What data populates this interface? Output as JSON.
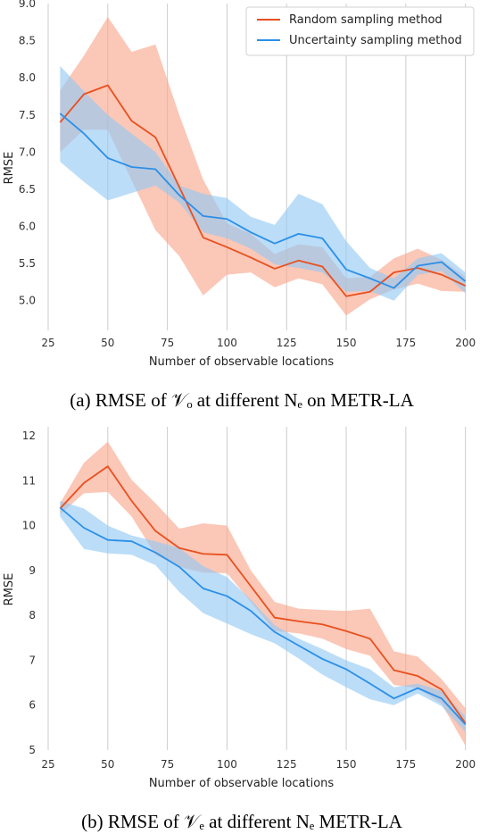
{
  "colors": {
    "random": "#e8501e",
    "random_band": "#f9a58a",
    "uncertainty": "#2b8fe8",
    "uncertainty_band": "#92c8f4",
    "grid": "#cccccc"
  },
  "chart_data": [
    {
      "type": "line",
      "caption": "(a) RMSE of 𝒱ₒ at different Nₑ on METR-LA",
      "xlabel": "Number of observable locations",
      "ylabel": "RMSE",
      "xlim": [
        25,
        202
      ],
      "ylim": [
        4.6,
        9.0
      ],
      "xticks": [
        25,
        50,
        75,
        100,
        125,
        150,
        175,
        200
      ],
      "yticks": [
        5.0,
        5.5,
        6.0,
        6.5,
        7.0,
        7.5,
        8.0,
        8.5,
        9.0
      ],
      "ytick_labels": [
        "5.0",
        "5.5",
        "6.0",
        "6.5",
        "7.0",
        "7.5",
        "8.0",
        "8.5",
        "9.0"
      ],
      "grid": "vertical",
      "legend": "top-right",
      "x": [
        30,
        40,
        50,
        60,
        70,
        80,
        90,
        100,
        110,
        120,
        130,
        140,
        150,
        160,
        170,
        180,
        190,
        200
      ],
      "series": [
        {
          "name": "Random sampling method",
          "key": "random",
          "values": [
            7.4,
            7.78,
            7.9,
            7.42,
            7.2,
            6.53,
            5.85,
            5.72,
            5.58,
            5.43,
            5.54,
            5.46,
            5.06,
            5.12,
            5.38,
            5.44,
            5.35,
            5.2
          ],
          "upper": [
            7.83,
            8.3,
            8.82,
            8.35,
            8.45,
            7.5,
            6.63,
            6.04,
            5.9,
            5.63,
            5.76,
            5.72,
            5.3,
            5.32,
            5.57,
            5.7,
            5.55,
            5.32
          ],
          "lower": [
            7.0,
            7.3,
            7.3,
            6.62,
            5.95,
            5.6,
            5.07,
            5.35,
            5.38,
            5.18,
            5.3,
            5.22,
            4.8,
            5.02,
            5.15,
            5.23,
            5.13,
            5.12
          ]
        },
        {
          "name": "Uncertainty sampling method",
          "key": "uncertainty",
          "values": [
            7.52,
            7.25,
            6.92,
            6.8,
            6.77,
            6.42,
            6.14,
            6.1,
            5.92,
            5.77,
            5.9,
            5.84,
            5.42,
            5.3,
            5.17,
            5.47,
            5.52,
            5.26
          ],
          "upper": [
            8.16,
            7.82,
            7.5,
            7.25,
            7.0,
            6.55,
            6.44,
            6.38,
            6.13,
            6.02,
            6.44,
            6.3,
            5.8,
            5.44,
            5.3,
            5.57,
            5.64,
            5.38
          ],
          "lower": [
            6.87,
            6.6,
            6.35,
            6.45,
            6.55,
            6.32,
            5.92,
            5.84,
            5.7,
            5.49,
            5.44,
            5.38,
            5.12,
            5.13,
            5.0,
            5.35,
            5.4,
            5.1
          ]
        }
      ]
    },
    {
      "type": "line",
      "caption": "(b) RMSE of 𝒱ₑ at different Nₑ METR-LA",
      "xlabel": "Number of observable locations",
      "ylabel": "RMSE",
      "xlim": [
        25,
        202
      ],
      "ylim": [
        5.0,
        12.2
      ],
      "xticks": [
        25,
        50,
        75,
        100,
        125,
        150,
        175,
        200
      ],
      "yticks": [
        5,
        6,
        7,
        8,
        9,
        10,
        11,
        12
      ],
      "ytick_labels": [
        "5",
        "6",
        "7",
        "8",
        "9",
        "10",
        "11",
        "12"
      ],
      "grid": "vertical",
      "legend": "none",
      "x": [
        30,
        40,
        50,
        60,
        70,
        80,
        90,
        100,
        110,
        120,
        130,
        140,
        150,
        160,
        170,
        180,
        190,
        200
      ],
      "series": [
        {
          "name": "Random sampling method",
          "key": "random",
          "values": [
            10.38,
            10.95,
            11.32,
            10.55,
            9.88,
            9.5,
            9.37,
            9.35,
            8.65,
            7.95,
            7.87,
            7.8,
            7.65,
            7.48,
            6.78,
            6.65,
            6.35,
            5.6
          ],
          "upper": [
            10.5,
            11.4,
            11.87,
            11.02,
            10.5,
            9.93,
            10.05,
            10.0,
            9.0,
            8.3,
            8.15,
            8.12,
            8.1,
            8.15,
            7.2,
            7.08,
            6.58,
            5.93
          ],
          "lower": [
            10.25,
            10.72,
            10.75,
            10.2,
            9.35,
            9.08,
            8.95,
            8.94,
            8.3,
            7.65,
            7.6,
            7.48,
            7.25,
            7.1,
            6.45,
            6.38,
            6.03,
            5.1
          ]
        },
        {
          "name": "Uncertainty sampling method",
          "key": "uncertainty",
          "values": [
            10.4,
            9.95,
            9.68,
            9.65,
            9.4,
            9.08,
            8.6,
            8.43,
            8.1,
            7.63,
            7.33,
            7.03,
            6.8,
            6.48,
            6.15,
            6.38,
            6.15,
            5.57
          ],
          "upper": [
            10.55,
            10.38,
            10.0,
            9.78,
            9.65,
            9.5,
            9.1,
            8.85,
            8.35,
            7.78,
            7.48,
            7.25,
            7.0,
            6.8,
            6.4,
            6.48,
            6.32,
            5.75
          ],
          "lower": [
            10.2,
            9.48,
            9.38,
            9.35,
            9.12,
            8.52,
            8.05,
            7.82,
            7.58,
            7.38,
            7.04,
            6.68,
            6.4,
            6.13,
            6.0,
            6.26,
            5.98,
            5.4
          ]
        }
      ]
    }
  ]
}
